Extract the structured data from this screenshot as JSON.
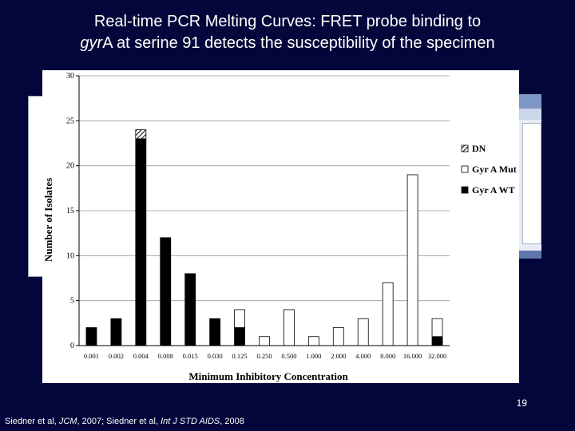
{
  "slide": {
    "title_line1": "Real-time PCR Melting Curves: FRET probe binding to",
    "title_line2_italic": "gyr",
    "title_line2_rest": "A at serine 91 detects the susceptibility of the specimen",
    "page_number": "19",
    "citation": {
      "part1": "Siedner et al, ",
      "journal1": "JCM",
      "part2": ", 2007; Siedner et al, ",
      "journal2": "Int J STD AIDS",
      "part3": ", 2008"
    }
  },
  "colors": {
    "background": "#03063a",
    "wt": "#000000",
    "mut": "#ffffff",
    "dn": "hatched"
  },
  "chart_data": {
    "type": "bar",
    "stacked": true,
    "xlabel": "Minimum Inhibitory Concentration",
    "ylabel": "Number of Isolates",
    "ylim": [
      0,
      30
    ],
    "yticks": [
      "0",
      "5",
      "10",
      "15",
      "20",
      "25",
      "30"
    ],
    "categories": [
      "0.001",
      "0.002",
      "0.004",
      "0.008",
      "0.015",
      "0.030",
      "0.125",
      "0.250",
      "0.500",
      "1.000",
      "2.000",
      "4.000",
      "8.000",
      "16.000",
      "32.000"
    ],
    "series": [
      {
        "name": "Gyr A WT",
        "values": [
          2,
          3,
          23,
          12,
          8,
          3,
          2,
          0,
          0,
          0,
          0,
          0,
          0,
          0,
          1
        ]
      },
      {
        "name": "Gyr A Mut",
        "values": [
          0,
          0,
          0,
          0,
          0,
          0,
          2,
          1,
          4,
          1,
          2,
          3,
          7,
          19,
          2
        ]
      },
      {
        "name": "DN",
        "values": [
          0,
          0,
          1,
          0,
          0,
          0,
          0,
          0,
          0,
          0,
          0,
          0,
          0,
          0,
          0
        ]
      }
    ],
    "legend": [
      {
        "label": "DN",
        "fill": "hatched"
      },
      {
        "label": "Gyr A Mut",
        "fill": "white"
      },
      {
        "label": "Gyr A WT",
        "fill": "black"
      }
    ],
    "legend_position": "right",
    "grid": true
  }
}
